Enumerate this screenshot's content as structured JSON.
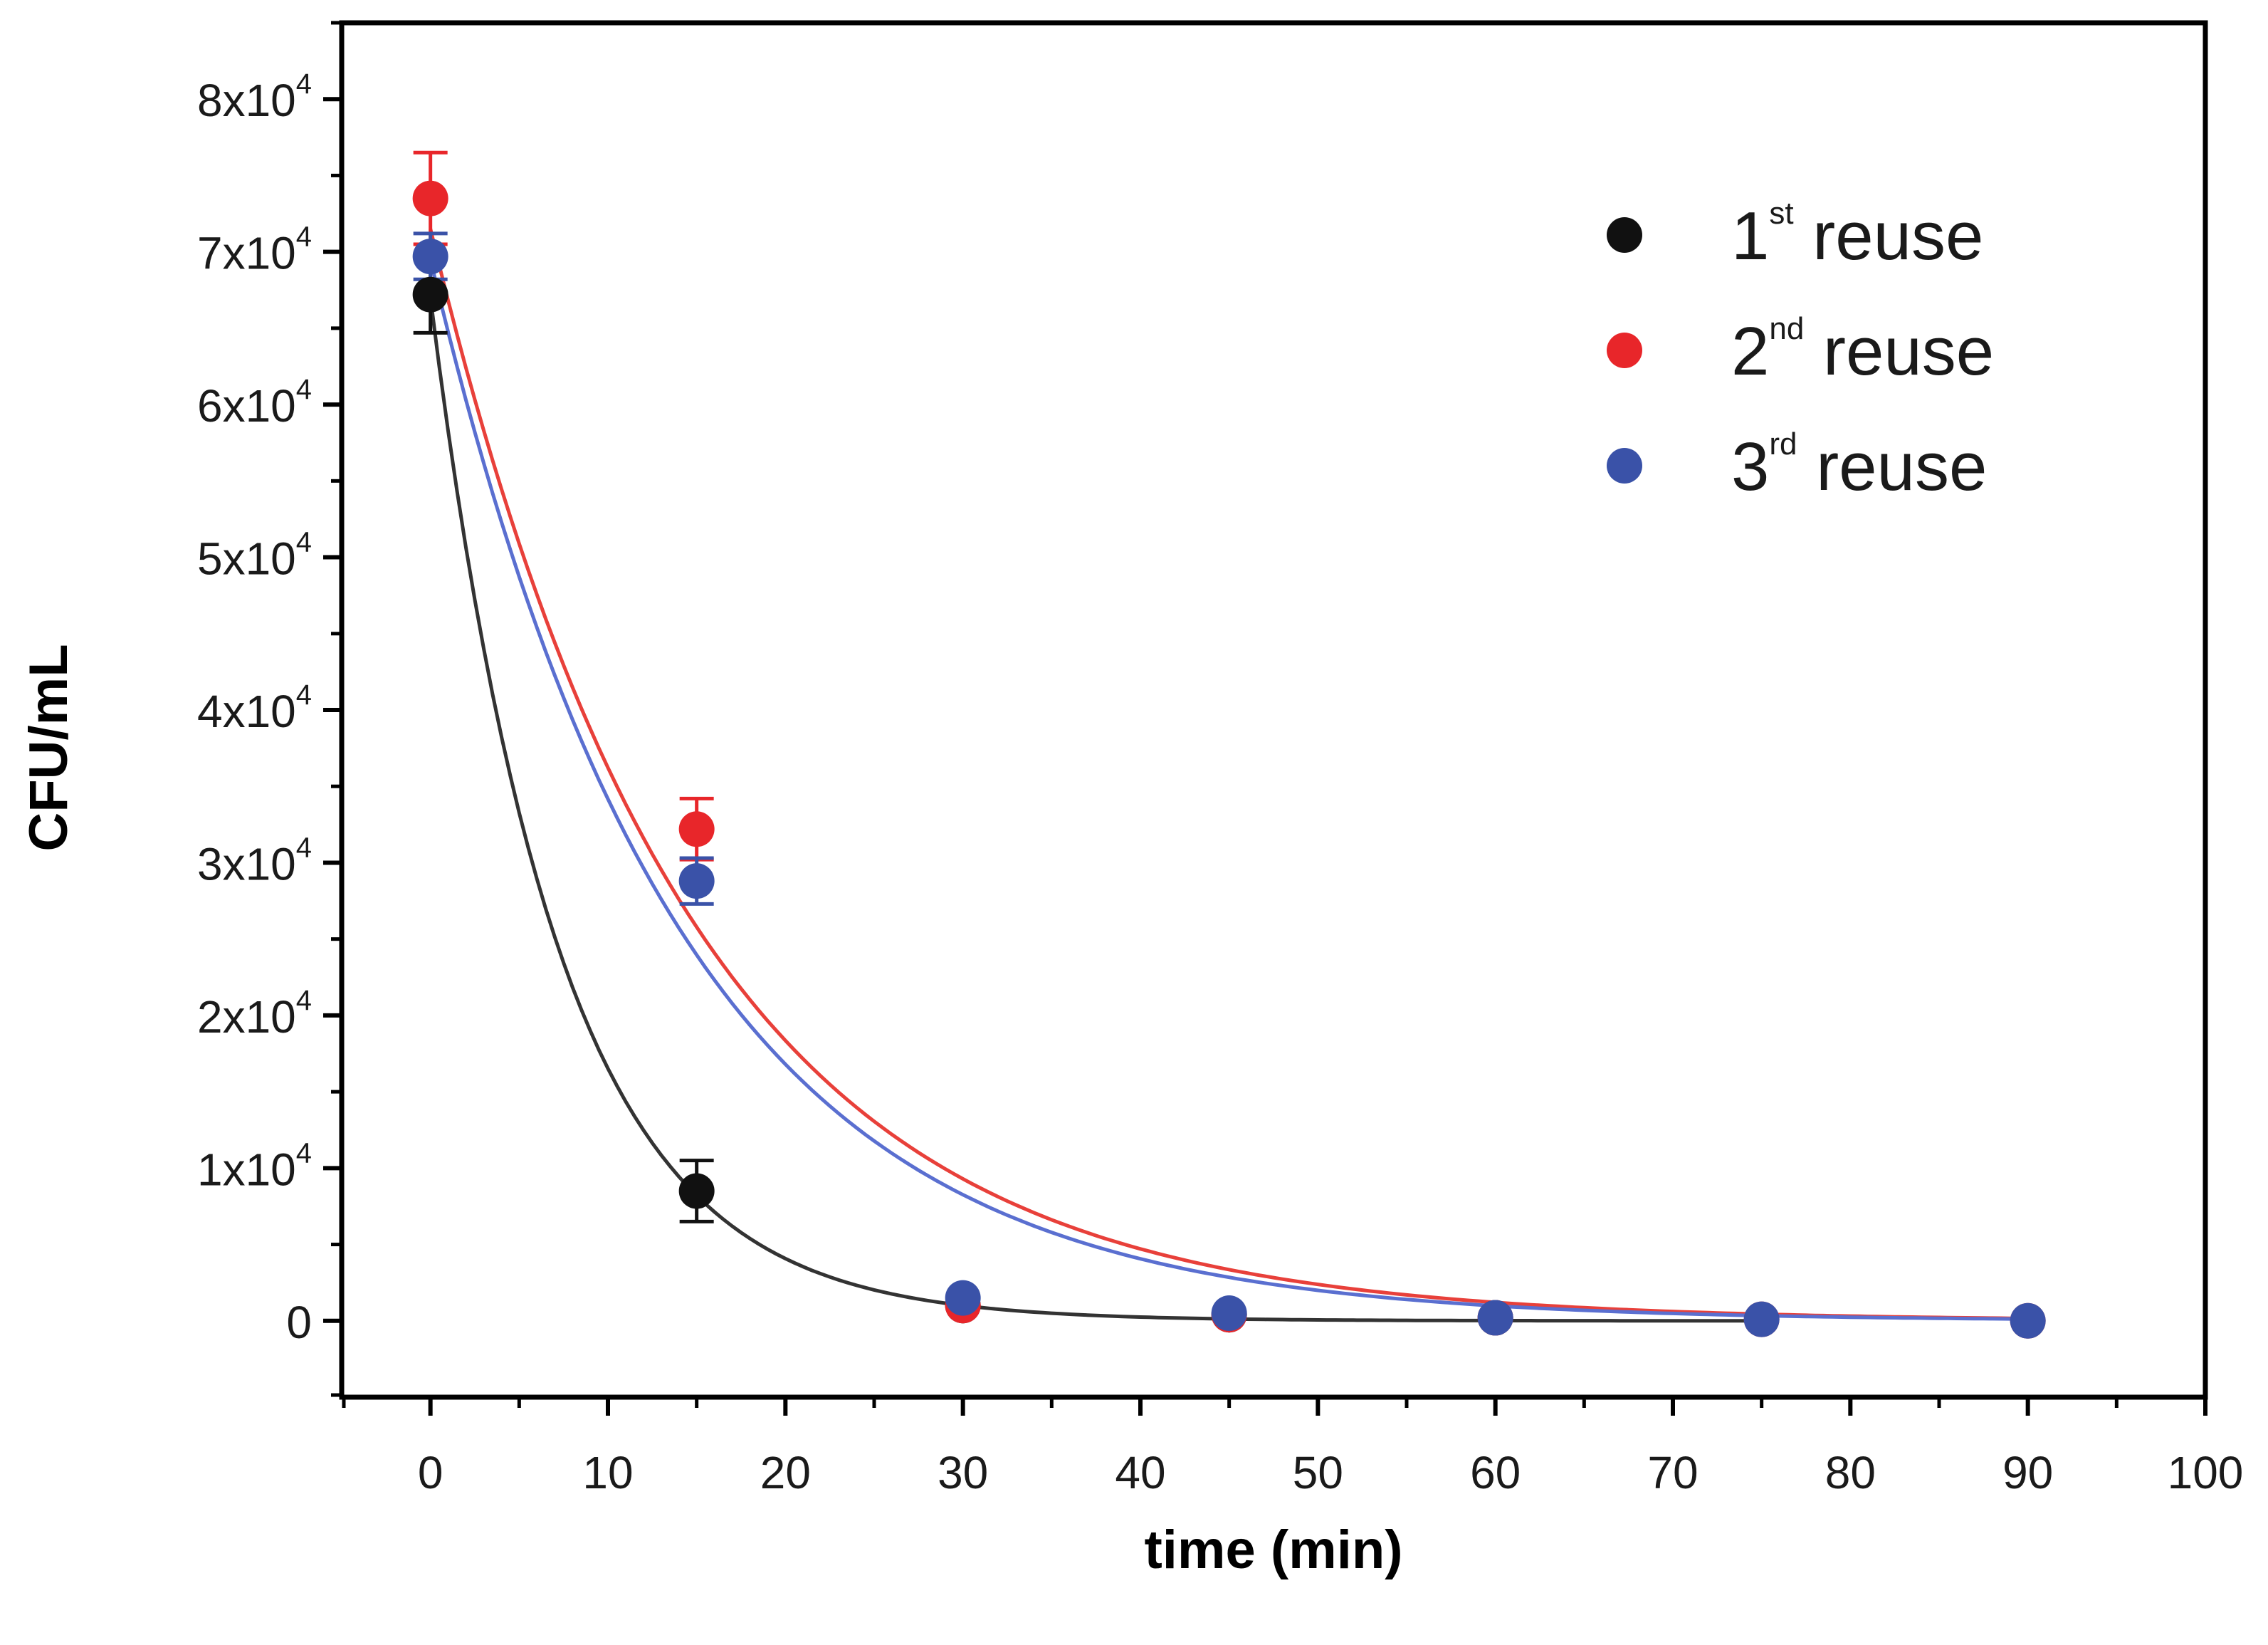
{
  "chart_data": {
    "type": "scatter",
    "xlabel": "time (min)",
    "ylabel": "CFU/mL",
    "xlim": [
      -5,
      100
    ],
    "ylim": [
      -5000,
      85000
    ],
    "x_ticks": [
      0,
      10,
      20,
      30,
      40,
      50,
      60,
      70,
      80,
      90,
      100
    ],
    "y_ticks": [
      {
        "value": 0,
        "mantissa": "0",
        "exponent": ""
      },
      {
        "value": 10000,
        "mantissa": "1x10",
        "exponent": "4"
      },
      {
        "value": 20000,
        "mantissa": "2x10",
        "exponent": "4"
      },
      {
        "value": 30000,
        "mantissa": "3x10",
        "exponent": "4"
      },
      {
        "value": 40000,
        "mantissa": "4x10",
        "exponent": "4"
      },
      {
        "value": 50000,
        "mantissa": "5x10",
        "exponent": "4"
      },
      {
        "value": 60000,
        "mantissa": "6x10",
        "exponent": "4"
      },
      {
        "value": 70000,
        "mantissa": "7x10",
        "exponent": "4"
      },
      {
        "value": 80000,
        "mantissa": "8x10",
        "exponent": "4"
      }
    ],
    "legend_position": "top-right",
    "series": [
      {
        "name": "1st reuse",
        "label_num": "1",
        "label_sup": "st",
        "label_rest": " reuse",
        "color": "#111111",
        "line_color": "#333333",
        "x": [
          0,
          15,
          30,
          45,
          60
        ],
        "y": [
          67200,
          8500,
          1000,
          400,
          200
        ],
        "err": [
          2500,
          2000,
          0,
          0,
          0
        ],
        "fit": {
          "a": 67000,
          "k": 0.14,
          "x_end": 75
        }
      },
      {
        "name": "2nd reuse",
        "label_num": "2",
        "label_sup": "nd",
        "label_rest": " reuse",
        "color": "#e8262a",
        "line_color": "#e8403a",
        "x": [
          0,
          15,
          30,
          45,
          60,
          75,
          90
        ],
        "y": [
          73500,
          32200,
          1000,
          400,
          200,
          100,
          0
        ],
        "err": [
          3000,
          2000,
          0,
          0,
          0,
          0,
          0
        ],
        "fit": {
          "a": 71500,
          "k": 0.068,
          "x_end": 90
        }
      },
      {
        "name": "3rd reuse",
        "label_num": "3",
        "label_sup": "rd",
        "label_rest": " reuse",
        "color": "#3a52a8",
        "line_color": "#5a6fd0",
        "x": [
          0,
          15,
          30,
          45,
          60,
          75,
          90
        ],
        "y": [
          69700,
          28800,
          1500,
          500,
          200,
          100,
          0
        ],
        "err": [
          1500,
          1500,
          0,
          0,
          0,
          0,
          0
        ],
        "fit": {
          "a": 69500,
          "k": 0.071,
          "x_end": 90
        }
      }
    ]
  }
}
